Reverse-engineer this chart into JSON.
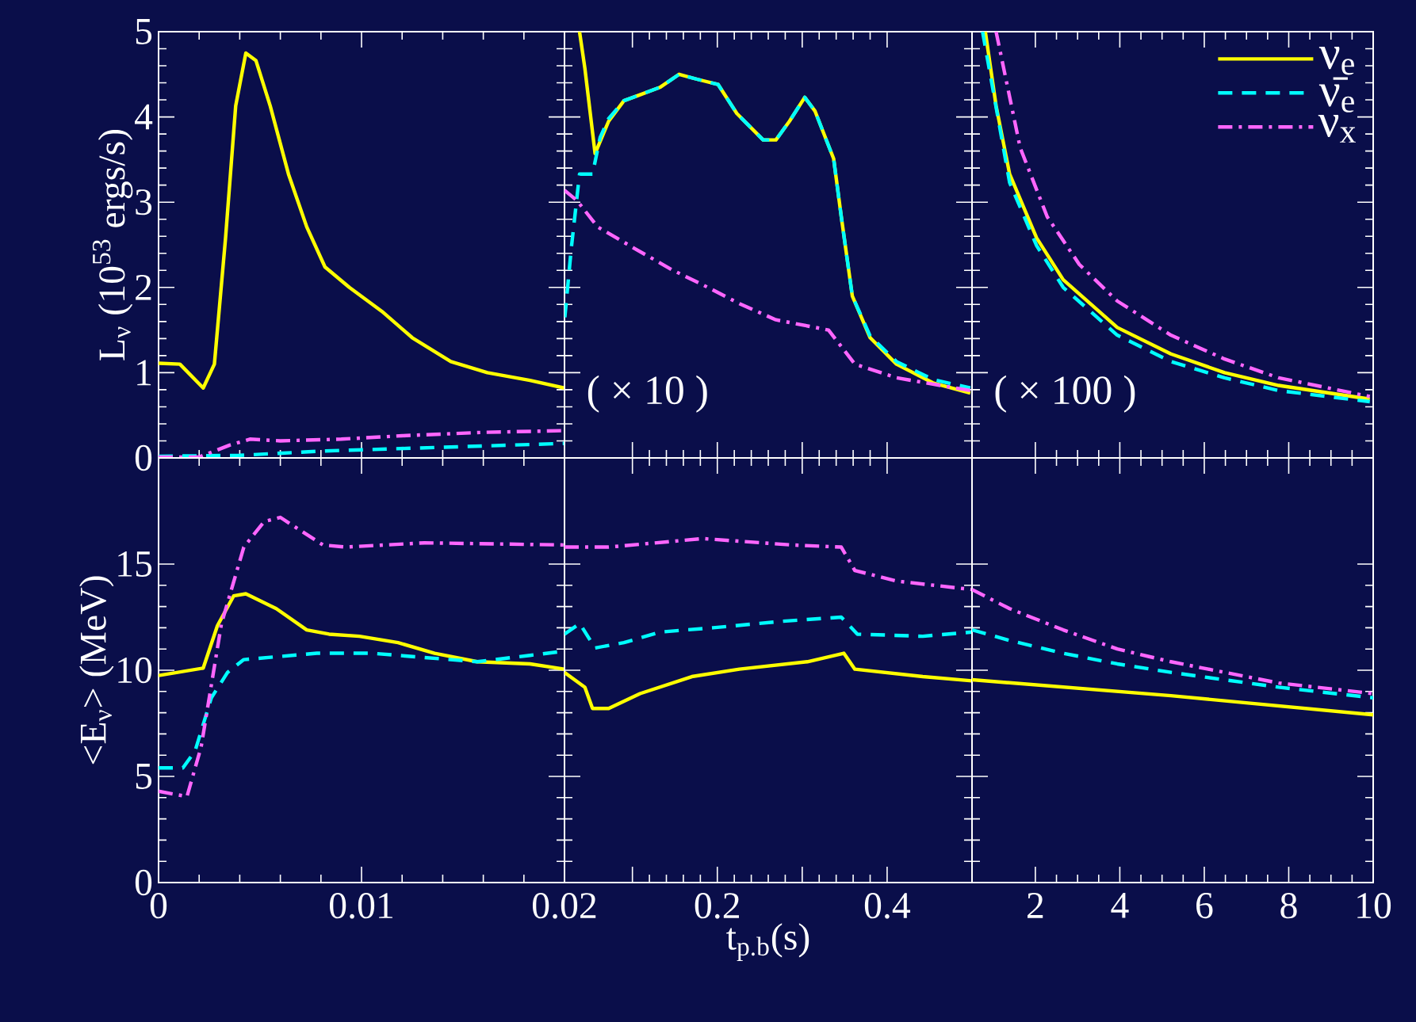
{
  "chart_data": [
    {
      "type": "line",
      "ylabel": "L$_{ν}$ (10$^{53}$ ergs/s)",
      "xlim": [
        0,
        0.02
      ],
      "ylim": [
        0,
        5
      ],
      "xticks": [
        {
          "value": 0,
          "label": null
        },
        {
          "value": 0.01,
          "label": null
        },
        {
          "value": 0.02,
          "label": null
        }
      ],
      "yticks": [
        0,
        1,
        2,
        3,
        4,
        5
      ],
      "tick_labels": "y",
      "series": [
        {
          "color": "#ffff00",
          "line_style": "solid",
          "x": [
            0,
            0.00105,
            0.0022,
            0.00275,
            0.0033,
            0.0038,
            0.0043,
            0.0048,
            0.0055,
            0.0064,
            0.0073,
            0.0082,
            0.0094,
            0.011,
            0.0125,
            0.0144,
            0.0162,
            0.0183,
            0.02
          ],
          "values": [
            1.11,
            1.1,
            0.82,
            1.1,
            2.58,
            4.13,
            4.75,
            4.66,
            4.13,
            3.33,
            2.71,
            2.24,
            2.0,
            1.72,
            1.41,
            1.13,
            1.0,
            0.91,
            0.82
          ]
        },
        {
          "color": "#00ffff",
          "line_style": "dashed",
          "x": [
            0,
            0.004,
            0.008,
            0.012,
            0.016,
            0.02
          ],
          "values": [
            0.02,
            0.03,
            0.08,
            0.11,
            0.14,
            0.17
          ]
        },
        {
          "color": "#ff66ff",
          "line_style": "dashdot",
          "x": [
            0,
            0.002,
            0.0035,
            0.0045,
            0.006,
            0.009,
            0.012,
            0.016,
            0.02
          ],
          "values": [
            0.01,
            0.01,
            0.15,
            0.22,
            0.2,
            0.22,
            0.26,
            0.3,
            0.32
          ]
        }
      ]
    },
    {
      "type": "line",
      "annotations": [
        "( × 10 )"
      ],
      "xlim": [
        0.02,
        0.5
      ],
      "ylim": [
        0,
        5
      ],
      "xticks": [
        {
          "value": 0.1,
          "label": null
        },
        {
          "value": 0.2,
          "label": null
        },
        {
          "value": 0.3,
          "label": null
        },
        {
          "value": 0.4,
          "label": null
        }
      ],
      "yticks": [
        {
          "value": 0,
          "label": null
        },
        {
          "value": 1,
          "label": null
        },
        {
          "value": 2,
          "label": null
        },
        {
          "value": 3,
          "label": null
        },
        {
          "value": 4,
          "label": null
        },
        {
          "value": 5,
          "label": null
        }
      ],
      "tick_labels": false,
      "series": [
        {
          "color": "#ffff00",
          "line_style": "solid",
          "x": [
            0.0377,
            0.044,
            0.056,
            0.072,
            0.09,
            0.109,
            0.133,
            0.155,
            0.177,
            0.201,
            0.223,
            0.254,
            0.269,
            0.285,
            0.303,
            0.315,
            0.337,
            0.346,
            0.359,
            0.38,
            0.411,
            0.454,
            0.498
          ],
          "values": [
            5.0,
            4.57,
            3.57,
            3.95,
            4.19,
            4.26,
            4.35,
            4.5,
            4.44,
            4.38,
            4.04,
            3.73,
            3.73,
            3.95,
            4.23,
            4.07,
            3.51,
            2.83,
            1.9,
            1.41,
            1.1,
            0.88,
            0.76
          ]
        },
        {
          "color": "#00ffff",
          "line_style": "dashed",
          "x": [
            0.0204,
            0.028,
            0.0377,
            0.053,
            0.062,
            0.072,
            0.09,
            0.109,
            0.133,
            0.155,
            0.177,
            0.201,
            0.223,
            0.254,
            0.269,
            0.285,
            0.303,
            0.315,
            0.337,
            0.346,
            0.359,
            0.38,
            0.411,
            0.454,
            0.498
          ],
          "values": [
            1.65,
            2.46,
            3.33,
            3.33,
            3.76,
            3.98,
            4.19,
            4.26,
            4.35,
            4.5,
            4.44,
            4.38,
            4.04,
            3.73,
            3.73,
            3.95,
            4.23,
            4.07,
            3.51,
            2.83,
            1.9,
            1.43,
            1.13,
            0.92,
            0.82
          ]
        },
        {
          "color": "#ff66ff",
          "line_style": "dashdot",
          "x": [
            0.02,
            0.0346,
            0.059,
            0.102,
            0.146,
            0.189,
            0.226,
            0.269,
            0.331,
            0.362,
            0.411,
            0.498
          ],
          "values": [
            3.14,
            3.02,
            2.71,
            2.46,
            2.21,
            2.0,
            1.81,
            1.62,
            1.5,
            1.1,
            0.94,
            0.79
          ]
        }
      ]
    },
    {
      "type": "line",
      "annotations": [
        "( × 100 )"
      ],
      "legend": "top right",
      "xlim": [
        0.5,
        10
      ],
      "ylim": [
        0,
        5
      ],
      "xticks": [
        {
          "value": 2,
          "label": null
        },
        {
          "value": 4,
          "label": null
        },
        {
          "value": 6,
          "label": null
        },
        {
          "value": 8,
          "label": null
        },
        {
          "value": 10,
          "label": null
        }
      ],
      "yticks": [
        {
          "value": 0,
          "label": null
        },
        {
          "value": 1,
          "label": null
        },
        {
          "value": 2,
          "label": null
        },
        {
          "value": 3,
          "label": null
        },
        {
          "value": 4,
          "label": null
        },
        {
          "value": 5,
          "label": null
        }
      ],
      "tick_labels": false,
      "series": [
        {
          "name": "ν$_{e}$",
          "color": "#ffff00",
          "line_style": "solid",
          "x": [
            0.815,
            1.07,
            1.39,
            2.03,
            2.66,
            3.94,
            5.21,
            6.48,
            7.76,
            9.92
          ],
          "values": [
            5.0,
            4.13,
            3.33,
            2.58,
            2.09,
            1.53,
            1.22,
            1.0,
            0.85,
            0.69
          ]
        },
        {
          "name": "ν̄$_{e}$",
          "color": "#00ffff",
          "line_style": "dashed",
          "x": [
            0.75,
            1.39,
            2.03,
            2.66,
            3.94,
            5.21,
            6.48,
            7.76,
            9.92
          ],
          "values": [
            5.0,
            3.23,
            2.49,
            2.0,
            1.44,
            1.13,
            0.94,
            0.79,
            0.66
          ]
        },
        {
          "name": "ν$_{x}$",
          "color": "#ff66ff",
          "line_style": "dashdot",
          "x": [
            1.07,
            1.64,
            2.28,
            3.04,
            3.94,
            5.21,
            6.48,
            7.76,
            9.92
          ],
          "values": [
            5.0,
            3.64,
            2.83,
            2.27,
            1.84,
            1.44,
            1.16,
            0.94,
            0.72
          ]
        }
      ]
    },
    {
      "type": "line",
      "ylabel": "<E$_{ν}$> (MeV)",
      "xlim": [
        0,
        0.02
      ],
      "ylim": [
        0,
        20
      ],
      "xticks": [
        0,
        0.01,
        0.02
      ],
      "yticks": [
        0,
        5,
        10,
        15
      ],
      "series": [
        {
          "color": "#ffff00",
          "line_style": "solid",
          "x": [
            0,
            0.0022,
            0.0029,
            0.0037,
            0.0043,
            0.0058,
            0.0073,
            0.0084,
            0.0099,
            0.0118,
            0.0136,
            0.0157,
            0.0183,
            0.02
          ],
          "values": [
            9.75,
            10.1,
            12.1,
            13.5,
            13.6,
            12.9,
            11.9,
            11.7,
            11.6,
            11.3,
            10.8,
            10.4,
            10.3,
            10.05
          ]
        },
        {
          "color": "#00ffff",
          "line_style": "dashed",
          "x": [
            0,
            0.0012,
            0.0018,
            0.0026,
            0.0034,
            0.0042,
            0.0078,
            0.0105,
            0.0131,
            0.0157,
            0.0183,
            0.02
          ],
          "values": [
            5.4,
            5.4,
            6.2,
            8.7,
            9.9,
            10.5,
            10.8,
            10.8,
            10.6,
            10.4,
            10.7,
            10.9
          ]
        },
        {
          "color": "#ff66ff",
          "line_style": "dashdot",
          "x": [
            0,
            0.0014,
            0.0021,
            0.0031,
            0.0042,
            0.0052,
            0.006,
            0.0068,
            0.0081,
            0.0092,
            0.0131,
            0.02
          ],
          "values": [
            4.3,
            4.05,
            6.4,
            12.2,
            15.8,
            17.0,
            17.2,
            16.7,
            15.9,
            15.8,
            16.0,
            15.9
          ]
        }
      ]
    },
    {
      "type": "line",
      "xlabel": "t$_{p.b}$(s)",
      "xlim": [
        0.02,
        0.5
      ],
      "ylim": [
        0,
        20
      ],
      "xticks": [
        {
          "value": 0.1,
          "label": null
        },
        0.2,
        {
          "value": 0.3,
          "label": null
        },
        0.4
      ],
      "yticks": [
        {
          "value": 0,
          "label": null
        },
        {
          "value": 5,
          "label": null
        },
        {
          "value": 10,
          "label": null
        },
        {
          "value": 15,
          "label": null
        }
      ],
      "tick_labels": "x",
      "series": [
        {
          "color": "#ffff00",
          "line_style": "solid",
          "x": [
            0.02,
            0.044,
            0.053,
            0.072,
            0.109,
            0.17,
            0.226,
            0.306,
            0.349,
            0.362,
            0.442,
            0.5
          ],
          "values": [
            9.9,
            9.2,
            8.2,
            8.2,
            8.9,
            9.7,
            10.05,
            10.4,
            10.8,
            10.05,
            9.7,
            9.5
          ]
        },
        {
          "color": "#00ffff",
          "line_style": "dashed",
          "x": [
            0.02,
            0.038,
            0.056,
            0.09,
            0.133,
            0.195,
            0.275,
            0.346,
            0.365,
            0.442,
            0.5
          ],
          "values": [
            11.7,
            12.2,
            11.05,
            11.3,
            11.8,
            12.0,
            12.3,
            12.5,
            11.7,
            11.6,
            11.8
          ]
        },
        {
          "color": "#ff66ff",
          "line_style": "dashdot",
          "x": [
            0.02,
            0.072,
            0.183,
            0.288,
            0.346,
            0.362,
            0.411,
            0.5
          ],
          "values": [
            15.8,
            15.8,
            16.2,
            15.9,
            15.8,
            14.7,
            14.2,
            13.8
          ]
        }
      ]
    },
    {
      "type": "line",
      "xlim": [
        0.5,
        10
      ],
      "ylim": [
        0,
        20
      ],
      "xticks": [
        2,
        4,
        6,
        8,
        10
      ],
      "yticks": [
        {
          "value": 0,
          "label": null
        },
        {
          "value": 5,
          "label": null
        },
        {
          "value": 10,
          "label": null
        },
        {
          "value": 15,
          "label": null
        }
      ],
      "tick_labels": "x",
      "series": [
        {
          "color": "#ffff00",
          "line_style": "solid",
          "x": [
            0.5,
            5.21,
            10
          ],
          "values": [
            9.55,
            8.8,
            7.9
          ]
        },
        {
          "color": "#00ffff",
          "line_style": "dashed",
          "x": [
            0.5,
            1.39,
            2.66,
            3.94,
            5.21,
            6.48,
            7.76,
            10
          ],
          "values": [
            11.9,
            11.4,
            10.8,
            10.3,
            9.9,
            9.55,
            9.2,
            8.7
          ]
        },
        {
          "color": "#ff66ff",
          "line_style": "dashdot",
          "x": [
            0.5,
            1.39,
            2.66,
            3.94,
            5.21,
            6.48,
            7.76,
            10
          ],
          "values": [
            13.8,
            12.9,
            11.9,
            11.0,
            10.4,
            9.9,
            9.4,
            8.9
          ]
        }
      ]
    }
  ]
}
